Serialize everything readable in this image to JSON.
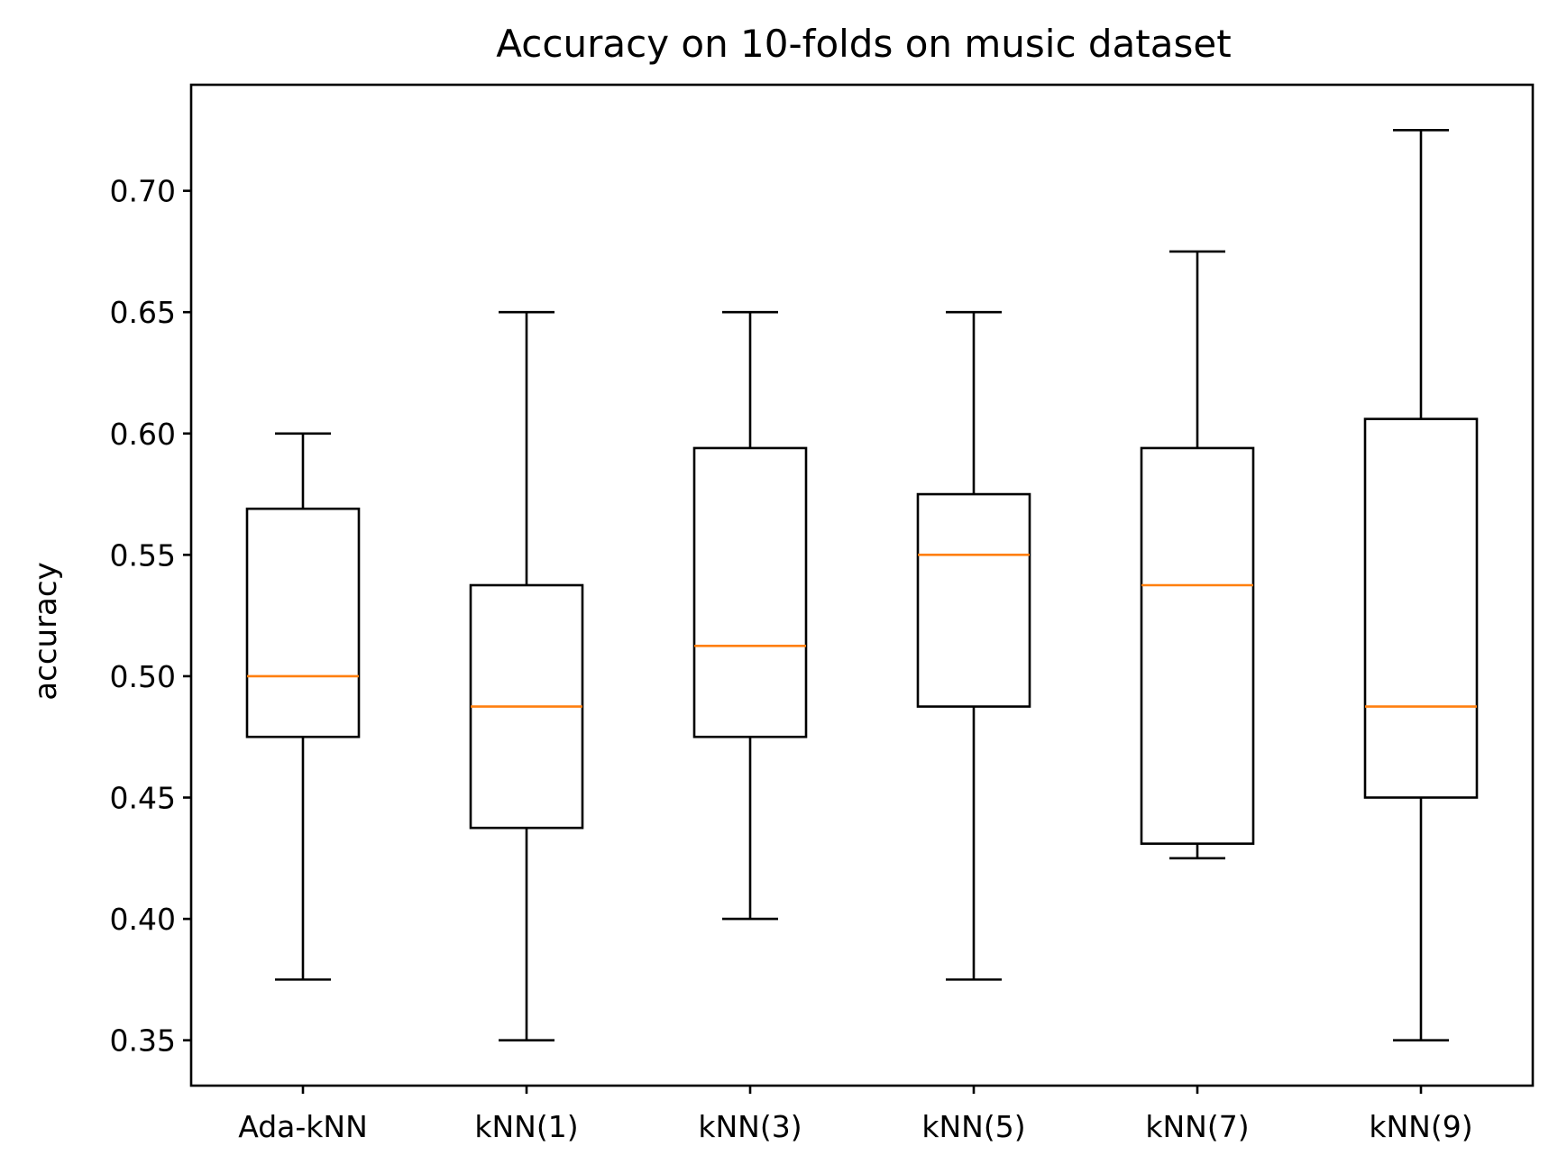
{
  "chart_data": {
    "type": "boxplot",
    "title": "Accuracy on 10-folds on music dataset",
    "xlabel": "",
    "ylabel": "accuracy",
    "ylim": [
      0.3313,
      0.7437
    ],
    "yticks": [
      0.35,
      0.4,
      0.45,
      0.5,
      0.55,
      0.6,
      0.65,
      0.7
    ],
    "ytick_labels": [
      "0.35",
      "0.40",
      "0.45",
      "0.50",
      "0.55",
      "0.60",
      "0.65",
      "0.70"
    ],
    "grid": false,
    "categories": [
      "Ada-kNN",
      "kNN(1)",
      "kNN(3)",
      "kNN(5)",
      "kNN(7)",
      "kNN(9)"
    ],
    "boxes": [
      {
        "label": "Ada-kNN",
        "whisker_low": 0.375,
        "q1": 0.475,
        "median": 0.5,
        "q3": 0.569,
        "whisker_high": 0.6
      },
      {
        "label": "kNN(1)",
        "whisker_low": 0.35,
        "q1": 0.4375,
        "median": 0.4875,
        "q3": 0.5375,
        "whisker_high": 0.65
      },
      {
        "label": "kNN(3)",
        "whisker_low": 0.4,
        "q1": 0.475,
        "median": 0.5125,
        "q3": 0.594,
        "whisker_high": 0.65
      },
      {
        "label": "kNN(5)",
        "whisker_low": 0.375,
        "q1": 0.4875,
        "median": 0.55,
        "q3": 0.575,
        "whisker_high": 0.65
      },
      {
        "label": "kNN(7)",
        "whisker_low": 0.425,
        "q1": 0.431,
        "median": 0.5375,
        "q3": 0.594,
        "whisker_high": 0.675
      },
      {
        "label": "kNN(9)",
        "whisker_low": 0.35,
        "q1": 0.45,
        "median": 0.4875,
        "q3": 0.606,
        "whisker_high": 0.725
      }
    ],
    "colors": {
      "box": "#000000",
      "median": "#ff7f0e",
      "background": "#ffffff"
    }
  }
}
